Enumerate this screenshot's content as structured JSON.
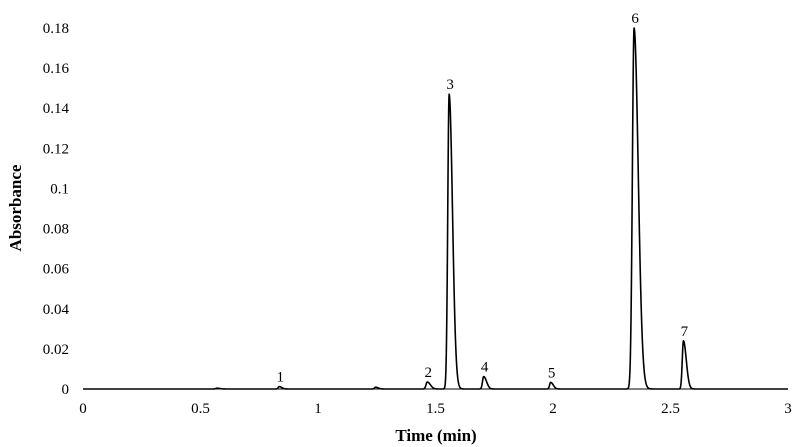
{
  "chart_data": {
    "type": "line",
    "title": "",
    "xlabel": "Time (min)",
    "ylabel": "Absorbance",
    "xlim": [
      0,
      3
    ],
    "ylim": [
      0,
      0.18
    ],
    "x_ticks": [
      0,
      0.5,
      1,
      1.5,
      2,
      2.5,
      3
    ],
    "x_tick_labels": [
      "0",
      "0.5",
      "1",
      "1.5",
      "2",
      "2.5",
      "3"
    ],
    "y_ticks": [
      0,
      0.02,
      0.04,
      0.06,
      0.08,
      0.1,
      0.12,
      0.14,
      0.16,
      0.18
    ],
    "y_tick_labels": [
      "0",
      "0.02",
      "0.04",
      "0.06",
      "0.08",
      "0.1",
      "0.12",
      "0.14",
      "0.16",
      "0.18"
    ],
    "grid": false,
    "legend": "none",
    "line_color": "#000000",
    "baseline": 0,
    "peaks": [
      {
        "label": "",
        "time": 0.57,
        "height": 0.0004,
        "width": 0.006
      },
      {
        "label": "1",
        "time": 0.835,
        "height": 0.0012,
        "width": 0.005
      },
      {
        "label": "",
        "time": 1.245,
        "height": 0.0009,
        "width": 0.005
      },
      {
        "label": "2",
        "time": 1.465,
        "height": 0.0035,
        "width": 0.006
      },
      {
        "label": "3",
        "time": 1.558,
        "height": 0.147,
        "width": 0.0065
      },
      {
        "label": "4",
        "time": 1.705,
        "height": 0.0062,
        "width": 0.0055
      },
      {
        "label": "5",
        "time": 1.99,
        "height": 0.0033,
        "width": 0.005
      },
      {
        "label": "6",
        "time": 2.345,
        "height": 0.18,
        "width": 0.008
      },
      {
        "label": "7",
        "time": 2.555,
        "height": 0.024,
        "width": 0.0055
      }
    ]
  }
}
